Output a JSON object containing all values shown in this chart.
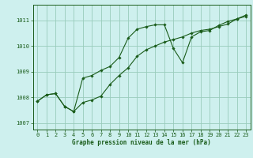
{
  "title": "Graphe pression niveau de la mer (hPa)",
  "bg_color": "#cef0ee",
  "grid_color": "#99ccbb",
  "line_color": "#1a5c1a",
  "marker_color": "#1a5c1a",
  "xlim": [
    -0.5,
    23.5
  ],
  "ylim": [
    1006.75,
    1011.6
  ],
  "yticks": [
    1007,
    1008,
    1009,
    1010,
    1011
  ],
  "xticks": [
    0,
    1,
    2,
    3,
    4,
    5,
    6,
    7,
    8,
    9,
    10,
    11,
    12,
    13,
    14,
    15,
    16,
    17,
    18,
    19,
    20,
    21,
    22,
    23
  ],
  "line1_x": [
    0,
    1,
    2,
    3,
    4,
    5,
    6,
    7,
    8,
    9,
    10,
    11,
    12,
    13,
    14,
    15,
    16,
    17,
    18,
    19,
    20,
    21,
    22,
    23
  ],
  "line1_y": [
    1007.85,
    1008.1,
    1008.15,
    1007.65,
    1007.45,
    1007.8,
    1007.9,
    1008.05,
    1008.5,
    1008.85,
    1009.15,
    1009.6,
    1009.85,
    1010.0,
    1010.15,
    1010.25,
    1010.35,
    1010.5,
    1010.6,
    1010.65,
    1010.75,
    1010.85,
    1011.05,
    1011.15
  ],
  "line2_x": [
    0,
    1,
    2,
    3,
    4,
    5,
    6,
    7,
    8,
    9,
    10,
    11,
    12,
    13,
    14,
    15,
    16,
    17,
    18,
    19,
    20,
    21,
    22,
    23
  ],
  "line2_y": [
    1007.85,
    1008.1,
    1008.15,
    1007.65,
    1007.45,
    1008.75,
    1008.85,
    1009.05,
    1009.2,
    1009.55,
    1010.3,
    1010.65,
    1010.75,
    1010.82,
    1010.82,
    1009.9,
    1009.35,
    1010.35,
    1010.55,
    1010.6,
    1010.8,
    1010.95,
    1011.05,
    1011.2
  ]
}
